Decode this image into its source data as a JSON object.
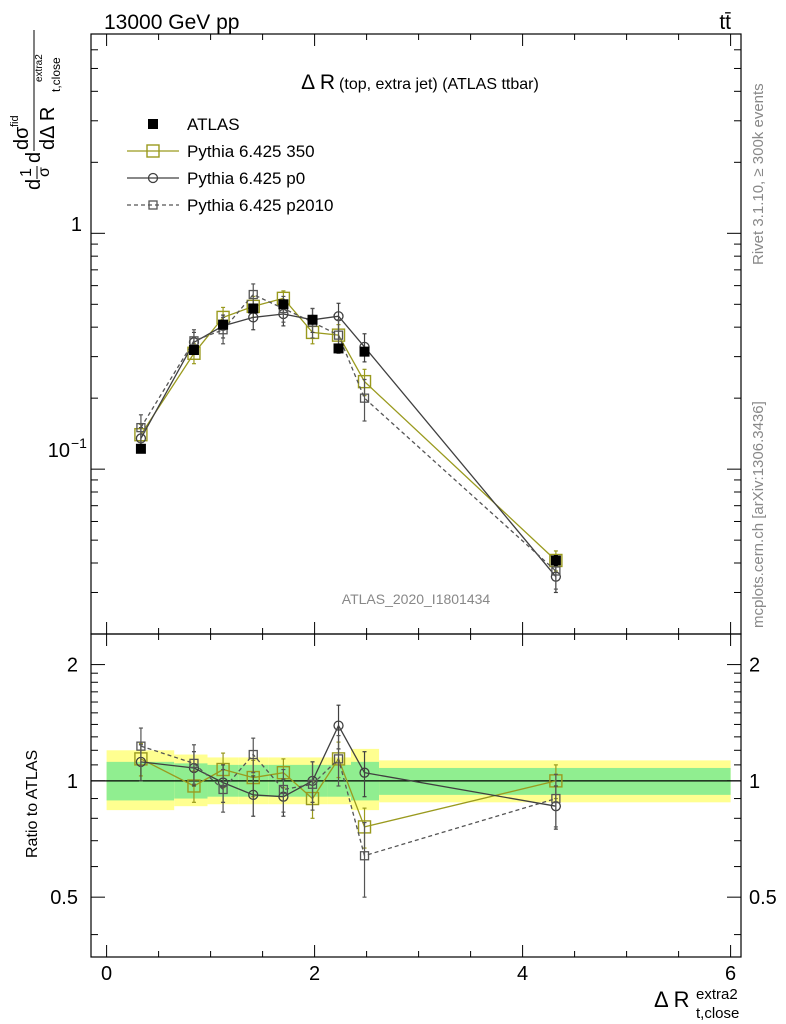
{
  "header": {
    "energy_label": "13000 GeV pp",
    "process_label": "tt̄"
  },
  "side_labels": {
    "rivet": "Rivet 3.1.10, ≥ 300k events",
    "mcplots": "mcplots.cern.ch [arXiv:1306.3436]"
  },
  "watermark": "ATLAS_2020_I1801434",
  "chart_data": [
    {
      "type": "scatter",
      "title": "Δ R (top, extra jet) (ATLAS ttbar)",
      "title_main": "Δ R",
      "title_sub": "(top, extra jet) (ATLAS ttbar)",
      "ylabel_parts": {
        "d": "d",
        "one": "1",
        "sigma": "σ",
        "dsigma": "dσ",
        "fid": "fid",
        "dDelta": "dΔ R",
        "sub": "t,close",
        "sup": "extra2"
      },
      "y_scale": "log",
      "ylim": [
        0.02,
        7.0
      ],
      "xlim": [
        -0.15,
        6.1
      ],
      "y_tick_labels": [
        "1",
        "10",
        "−1"
      ],
      "legend_position": "top-left",
      "x": [
        0.33,
        0.84,
        1.12,
        1.41,
        1.7,
        1.98,
        2.23,
        2.48,
        4.32
      ],
      "series": [
        {
          "name": "ATLAS",
          "color": "#000000",
          "marker": "filled-square",
          "values": [
            0.122,
            0.32,
            0.41,
            0.48,
            0.5,
            0.43,
            0.325,
            0.315,
            0.041
          ],
          "errors": [
            0.004,
            0.01,
            0.015,
            0.015,
            0.015,
            0.015,
            0.01,
            0.01,
            0.002
          ]
        },
        {
          "name": "Pythia 6.425 350",
          "color": "#9a9a1e",
          "marker": "open-square",
          "line": "solid",
          "values": [
            0.14,
            0.31,
            0.44,
            0.49,
            0.53,
            0.38,
            0.37,
            0.235,
            0.041
          ],
          "errors": [
            0.015,
            0.03,
            0.045,
            0.05,
            0.04,
            0.04,
            0.04,
            0.03,
            0.004
          ]
        },
        {
          "name": "Pythia 6.425 p0",
          "color": "#404040",
          "marker": "open-circle",
          "line": "solid",
          "values": [
            0.135,
            0.345,
            0.405,
            0.44,
            0.455,
            0.43,
            0.445,
            0.33,
            0.035
          ],
          "errors": [
            0.015,
            0.035,
            0.045,
            0.05,
            0.05,
            0.05,
            0.06,
            0.045,
            0.005
          ]
        },
        {
          "name": "Pythia 6.425 p2010",
          "color": "#555555",
          "marker": "open-square-small",
          "line": "dashed",
          "values": [
            0.15,
            0.35,
            0.39,
            0.55,
            0.48,
            0.42,
            0.37,
            0.2,
            0.037
          ],
          "errors": [
            0.02,
            0.04,
            0.05,
            0.06,
            0.06,
            0.06,
            0.06,
            0.04,
            0.006
          ]
        }
      ]
    },
    {
      "type": "scatter",
      "ylabel": "Ratio to ATLAS",
      "xlabel_main": "Δ R",
      "xlabel_sub": "t,close",
      "xlabel_sup": "extra2",
      "ylim": [
        0.35,
        2.4
      ],
      "xlim": [
        -0.15,
        6.1
      ],
      "y_scale": "log",
      "y_ticks": [
        0.5,
        1,
        2
      ],
      "y_tick_labels": [
        "0.5",
        "1",
        "2"
      ],
      "x_ticks": [
        0,
        2,
        4,
        6
      ],
      "x_tick_labels": [
        "0",
        "2",
        "4",
        "6"
      ],
      "x": [
        0.33,
        0.84,
        1.12,
        1.41,
        1.7,
        1.98,
        2.23,
        2.48,
        4.32
      ],
      "bands": {
        "edges": [
          0.0,
          0.65,
          0.97,
          1.27,
          1.56,
          1.85,
          2.12,
          2.35,
          2.62,
          6.0
        ],
        "inner": [
          [
            0.89,
            1.12
          ],
          [
            0.9,
            1.11
          ],
          [
            0.91,
            1.1
          ],
          [
            0.91,
            1.1
          ],
          [
            0.91,
            1.1
          ],
          [
            0.91,
            1.1
          ],
          [
            0.91,
            1.1
          ],
          [
            0.89,
            1.12
          ],
          [
            0.92,
            1.08
          ]
        ],
        "outer": [
          [
            0.84,
            1.2
          ],
          [
            0.86,
            1.17
          ],
          [
            0.87,
            1.15
          ],
          [
            0.87,
            1.15
          ],
          [
            0.87,
            1.15
          ],
          [
            0.87,
            1.15
          ],
          [
            0.87,
            1.15
          ],
          [
            0.84,
            1.21
          ],
          [
            0.88,
            1.13
          ]
        ],
        "inner_color": "#90ee90",
        "outer_color": "#ffff90"
      },
      "series": [
        {
          "name": "Pythia 6.425 350",
          "color": "#9a9a1e",
          "marker": "open-square",
          "line": "solid",
          "values": [
            1.14,
            0.97,
            1.07,
            1.02,
            1.05,
            0.9,
            1.14,
            0.76,
            1.0
          ],
          "errors": [
            0.11,
            0.09,
            0.11,
            0.11,
            0.09,
            0.1,
            0.12,
            0.09,
            0.1
          ]
        },
        {
          "name": "Pythia 6.425 p0",
          "color": "#404040",
          "marker": "open-circle",
          "line": "solid",
          "values": [
            1.12,
            1.08,
            0.99,
            0.92,
            0.91,
            1.0,
            1.39,
            1.05,
            0.86
          ],
          "errors": [
            0.12,
            0.11,
            0.11,
            0.11,
            0.1,
            0.12,
            0.18,
            0.14,
            0.11
          ]
        },
        {
          "name": "Pythia 6.425 p2010",
          "color": "#555555",
          "marker": "open-square-small",
          "line": "dashed",
          "values": [
            1.23,
            1.11,
            0.95,
            1.17,
            0.95,
            0.98,
            1.14,
            0.64,
            0.9
          ],
          "errors": [
            0.14,
            0.13,
            0.12,
            0.12,
            0.12,
            0.14,
            0.17,
            0.14,
            0.14
          ]
        }
      ]
    }
  ]
}
